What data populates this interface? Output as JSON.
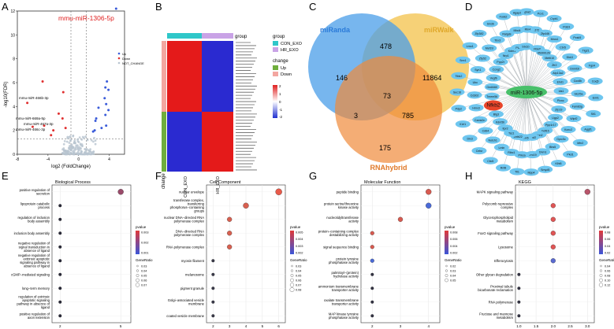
{
  "panelA": {
    "letter": "A",
    "title_label": "mmu-miR-1306-5p",
    "ylabel": "-log10(FDR)",
    "xlabel": "log2 (FoldChange)",
    "xticks": [
      "-8",
      "-4",
      "0",
      "4"
    ],
    "yticks": [
      "0",
      "2",
      "4",
      "6",
      "8",
      "10",
      "12"
    ],
    "legend": [
      {
        "label": "Up",
        "color": "#3a5bd9"
      },
      {
        "label": "Down",
        "color": "#e03030"
      },
      {
        "label": "NOT_CHANGE",
        "color": "#b8c4d0"
      }
    ],
    "labels": [
      "mmu-miR-466b-3p",
      "mmu-miR-669a-5p",
      "mmu-miR-467a-3p",
      "mmu-miR-466c-3p"
    ],
    "chart_data": {
      "type": "scatter",
      "xlabel": "log2 (FoldChange)",
      "ylabel": "-log10(FDR)",
      "xlim": [
        -8,
        6
      ],
      "ylim": [
        0,
        12
      ],
      "up": [
        [
          4.9,
          12.2
        ],
        [
          3.7,
          6.1
        ],
        [
          3.5,
          5.6
        ],
        [
          3.9,
          5.4
        ],
        [
          3.4,
          4.7
        ],
        [
          3.6,
          4.2
        ],
        [
          2.3,
          3.0
        ],
        [
          2.6,
          3.9
        ],
        [
          3.9,
          3.7
        ],
        [
          2.2,
          2.8
        ],
        [
          3.6,
          2.4
        ],
        [
          3.0,
          2.2
        ],
        [
          2.1,
          2.0
        ],
        [
          1.9,
          1.9
        ],
        [
          3.5,
          3.3
        ]
      ],
      "down": [
        [
          -4.7,
          6.1
        ],
        [
          -6.7,
          4.3
        ],
        [
          -2.0,
          5.2
        ],
        [
          -2.6,
          3.4
        ],
        [
          -4.5,
          2.4
        ],
        [
          -6.0,
          2.3
        ],
        [
          -2.1,
          3.0
        ],
        [
          -1.7,
          2.2
        ],
        [
          -3.3,
          2.0
        ],
        [
          -3.6,
          1.6
        ]
      ],
      "thresholds": {
        "x": [
          -1,
          1
        ],
        "y": 1.3
      }
    }
  },
  "panelB": {
    "letter": "B",
    "group_label": "group",
    "change_label": "change",
    "xlabels": [
      "CON_EXO",
      "HR_EXO"
    ],
    "legend_group_title": "group",
    "legend_group": [
      {
        "label": "CON_EXO",
        "color": "#2fc7c9"
      },
      {
        "label": "HR_EXO",
        "color": "#c9a3e6"
      }
    ],
    "legend_change_title": "change",
    "legend_change": [
      {
        "label": "Up",
        "color": "#6fae3c"
      },
      {
        "label": "Down",
        "color": "#f3a6a0"
      }
    ],
    "scale": [
      "2",
      "1",
      "0",
      "-1",
      "-2"
    ]
  },
  "panelC": {
    "letter": "C",
    "sets": [
      {
        "name": "miRanda",
        "color": "#4a9ee8"
      },
      {
        "name": "miRWalk",
        "color": "#f3c24a"
      },
      {
        "name": "RNAhybrid",
        "color": "#f08a3a"
      }
    ],
    "counts": {
      "miRanda_only": "146",
      "miRWalk_only": "11864",
      "RNAhybrid_only": "175",
      "miRanda_miRWalk": "478",
      "miRanda_RNAhybrid": "3",
      "miRWalk_RNAhybrid": "785",
      "all": "73"
    }
  },
  "panelD": {
    "letter": "D",
    "center": "miR-1306-5p",
    "highlight": "Nfkb2",
    "nodes": [
      "Lypla2",
      "Gm572",
      "Fblo6",
      "Pcx1",
      "Zfp446",
      "9530012b",
      "Cryb1",
      "Mrcs1",
      "Mettl10",
      "Pdcl3",
      "Cbr5",
      "Zfr2",
      "Pcsk5",
      "Dkk3",
      "Atp13a2",
      "Tlg21",
      "Dnmt3l",
      "Ehd1",
      "Fgs4",
      "Cox8b",
      "Ids1",
      "Coq5",
      "Slc25a",
      "Plxnc",
      "Eml1",
      "Fam83g",
      "Zfp19",
      "Stl1",
      "Wipf2",
      "Ugp2",
      "Aggf1",
      "Kcnc2",
      "Ppp1r17",
      "Mfn2",
      "Gprc5c",
      "Gdf15",
      "Pkd1",
      "Bbs5",
      "Ptpn2",
      "Klhl6",
      "Dnm1",
      "Wasf2",
      "Smyd5",
      "Lrrc19",
      "Fbln5",
      "Mpp4",
      "Prkca",
      "Zbtb22",
      "Tll1",
      "Ribc1",
      "Tsc1",
      "Rnf8",
      "Lmln",
      "Itpr2",
      "Clic5",
      "Notch1",
      "Kdm5b",
      "Celsr",
      "Cd64",
      "Btg3",
      "Dlx3",
      "Camk2n",
      "Nfkb2",
      "Il1rl1",
      "Hmx3",
      "Tmem56",
      "Pdp2",
      "Cd302",
      "Gm8460",
      "Sec16",
      "Ubc",
      "Vegfb",
      "Ttbk2",
      "Syn1",
      "Ccng2",
      "Snn1",
      "Zfp52",
      "Ppp2r",
      "Lmo1",
      "Mef2d",
      "Nrp1",
      "Zfp382",
      "Tbx3",
      "Kdm1",
      "Sin3b",
      "Ralgds",
      "Pld1",
      "Foxk2",
      "Mbd4",
      "Stx1b",
      "Agap2",
      "Rtn4"
    ]
  },
  "panelE": {
    "letter": "E",
    "title": "Biological Process",
    "xlabel": "Count",
    "chart_data": {
      "type": "scatter",
      "title": "Biological Process",
      "xlabel": "Count",
      "xlim": [
        1.6,
        5.5
      ],
      "xticks": [
        2,
        5
      ],
      "categories": [
        "positive regulation of secretion",
        "lipoprotein catabolic process",
        "regulation of inclusion body assembly",
        "inclusion body assembly",
        "negative regulation of signal transduction in absence of ligand",
        "negative regulation of extrinsic apoptotic signaling pathway in absence of ligand",
        "cGMP−mediated signaling",
        "long−term memory",
        "regulation of extrinsic apoptotic signaling pathway in absence of ligand",
        "positive regulation of axon extension"
      ],
      "values": [
        5,
        2,
        2,
        2,
        2,
        2,
        2,
        2,
        2,
        2
      ],
      "colors": [
        "#9a4a6a",
        "#2a2a3a",
        "#2a2a3a",
        "#2a2a3a",
        "#2a2a3a",
        "#2a2a3a",
        "#2a2a3a",
        "#2a2a3a",
        "#2a2a3a",
        "#2a2a3a"
      ],
      "sizes": [
        4,
        1,
        1,
        1,
        1,
        1,
        1,
        1,
        1,
        1
      ],
      "legend_pvalue": {
        "title": "pvalue",
        "ticks": [
          "0.003",
          "0.002",
          "0.001"
        ]
      },
      "legend_generatio": {
        "title": "GeneRatio",
        "ticks": [
          "0.03",
          "0.04",
          "0.05",
          "0.06",
          "0.07"
        ]
      }
    }
  },
  "panelF": {
    "letter": "F",
    "title": "Cell Component",
    "xlabel": "Count",
    "chart_data": {
      "type": "scatter",
      "title": "Cell Component",
      "xlabel": "Count",
      "xlim": [
        1.6,
        6.4
      ],
      "xticks": [
        2,
        3,
        4,
        5,
        6
      ],
      "categories": [
        "nuclear envelope",
        "transferase complex, transferring phosphorus−containing groups",
        "nuclear DNA−directed RNA polymerase complex",
        "DNA−directed RNA polymerase complex",
        "RNA polymerase complex",
        "myosin filament",
        "melanosome",
        "pigment granule",
        "Golgi−associated vesicle membrane",
        "coated vesicle membrane"
      ],
      "values": [
        6,
        4,
        3,
        3,
        3,
        2,
        2,
        2,
        2,
        2
      ],
      "colors": [
        "#e85a4a",
        "#d86050",
        "#d86050",
        "#d86050",
        "#d86050",
        "#3a3a4a",
        "#3a3a4a",
        "#3a3a4a",
        "#3a3a4a",
        "#3a3a4a"
      ],
      "sizes": [
        5,
        4,
        3,
        3,
        3,
        1,
        1,
        1,
        1,
        1
      ],
      "legend_pvalue": {
        "title": "pvalue",
        "ticks": [
          "0.005",
          "0.004",
          "0.003",
          "0.002"
        ]
      },
      "legend_generatio": {
        "title": "GeneRatio",
        "ticks": [
          "0.03",
          "0.04",
          "0.05",
          "0.06",
          "0.07",
          "0.08"
        ]
      }
    }
  },
  "panelG": {
    "letter": "G",
    "title": "Molecular Function",
    "xlabel": "Count",
    "chart_data": {
      "type": "scatter",
      "title": "Molecular Function",
      "xlabel": "Count",
      "xlim": [
        1.6,
        4.4
      ],
      "xticks": [
        2,
        3,
        4
      ],
      "categories": [
        "peptide binding",
        "protein serine/threonine kinase activity",
        "nucleotidyltransferase activity",
        "protein−containing complex destabilizing activity",
        "signal sequence binding",
        "protein tyrosine phosphatase activity",
        "palmitoyl−(protein) hydrolase activity",
        "ammonium transmembrane transporter activity",
        "oxalate transmembrane transporter activity",
        "MAP kinase tyrosine phosphatase activity"
      ],
      "values": [
        4,
        4,
        3,
        2,
        2,
        2,
        2,
        2,
        2,
        2
      ],
      "colors": [
        "#d85a50",
        "#4a6ad8",
        "#d85a50",
        "#d85a50",
        "#d85a50",
        "#4a6ad8",
        "#333344",
        "#333344",
        "#333344",
        "#333344"
      ],
      "sizes": [
        4,
        4,
        3,
        2,
        2,
        2,
        1,
        1,
        1,
        1
      ],
      "legend_pvalue": {
        "title": "pvalue",
        "ticks": [
          "0.008",
          "0.006",
          "0.004",
          "0.002"
        ]
      },
      "legend_generatio": {
        "title": "GeneRatio",
        "ticks": [
          "0.02",
          "0.03",
          "0.04",
          "0.05"
        ]
      }
    }
  },
  "panelH": {
    "letter": "H",
    "title": "KEGG",
    "xlabel": "Count",
    "chart_data": {
      "type": "scatter",
      "title": "KEGG",
      "xlabel": "Count",
      "xlim": [
        0.9,
        3.2
      ],
      "xticks": [
        1.0,
        1.5,
        2.0,
        2.5,
        3.0
      ],
      "xtick_labels": [
        "1.0",
        "1.5",
        "2.0",
        "2.5",
        "3.0"
      ],
      "categories": [
        "MAPK signaling pathway",
        "Polycomb repressive complex",
        "Glycerophospholipid metabolism",
        "FoxO signaling pathway",
        "Lysosome",
        "Efferocytosis",
        "Other glycan degradation",
        "Proximal tubule bicarbonate reclamation",
        "RNA polymerase",
        "Fructose and mannose metabolism"
      ],
      "values": [
        3,
        2,
        2,
        2,
        2,
        2,
        1,
        1,
        1,
        1
      ],
      "colors": [
        "#b8556a",
        "#e05555",
        "#e05555",
        "#e05555",
        "#e05555",
        "#5a6ad0",
        "#333344",
        "#333344",
        "#333344",
        "#333344"
      ],
      "sizes": [
        4,
        3,
        3,
        3,
        3,
        3,
        1,
        1,
        1,
        1
      ],
      "legend_pvalue": {
        "title": "pvalue",
        "ticks": [
          "0.08",
          "0.06",
          "0.04",
          "0.02"
        ]
      },
      "legend_generatio": {
        "title": "GeneRatio",
        "ticks": [
          "0.04",
          "0.06",
          "0.08",
          "0.10",
          "0.12"
        ]
      }
    }
  }
}
